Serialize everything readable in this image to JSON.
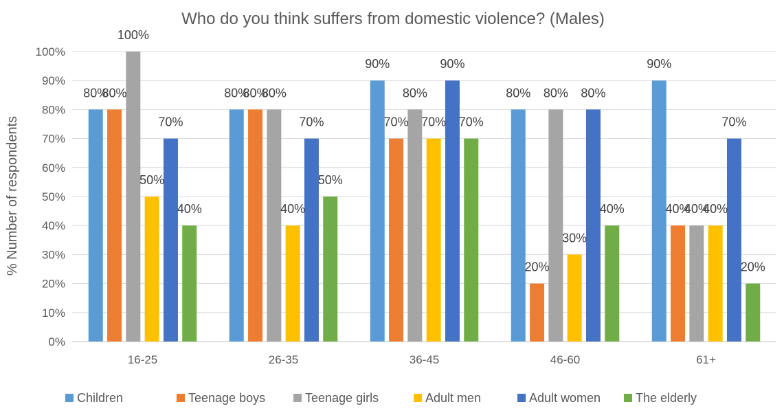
{
  "chart_data": {
    "type": "bar",
    "title": "Who do you think suffers from domestic violence? (Males)",
    "xlabel": "",
    "ylabel": "% Number of respondents",
    "categories": [
      "16-25",
      "26-35",
      "36-45",
      "46-60",
      "61+"
    ],
    "series": [
      {
        "name": "Children",
        "values": [
          80,
          80,
          90,
          80,
          90
        ],
        "labels": [
          "80%",
          "80%",
          "90%",
          "80%",
          "90%"
        ],
        "color": "#5B9BD5"
      },
      {
        "name": "Teenage boys",
        "values": [
          80,
          80,
          70,
          20,
          40
        ],
        "labels": [
          "80%",
          "80%",
          "70%",
          "20%",
          "40%"
        ],
        "color": "#ED7D31"
      },
      {
        "name": "Teenage girls",
        "values": [
          100,
          80,
          80,
          80,
          40
        ],
        "labels": [
          "100%",
          "80%",
          "80%",
          "80%",
          "40%"
        ],
        "color": "#A5A5A5"
      },
      {
        "name": "Adult men",
        "values": [
          50,
          40,
          70,
          30,
          40
        ],
        "labels": [
          "50%",
          "40%",
          "70%",
          "30%",
          "40%"
        ],
        "color": "#FFC000"
      },
      {
        "name": "Adult women",
        "values": [
          70,
          70,
          90,
          80,
          70
        ],
        "labels": [
          "70%",
          "70%",
          "90%",
          "80%",
          "70%"
        ],
        "color": "#4472C4"
      },
      {
        "name": "The elderly",
        "values": [
          40,
          50,
          70,
          40,
          20
        ],
        "labels": [
          "40%",
          "50%",
          "70%",
          "40%",
          "20%"
        ],
        "color": "#70AD47"
      }
    ],
    "yticks": [
      "0%",
      "10%",
      "20%",
      "30%",
      "40%",
      "50%",
      "60%",
      "70%",
      "80%",
      "90%",
      "100%"
    ],
    "ylim": [
      0,
      100
    ],
    "grid": true,
    "legend_position": "bottom",
    "gridline_color": "#D9D9D9"
  }
}
